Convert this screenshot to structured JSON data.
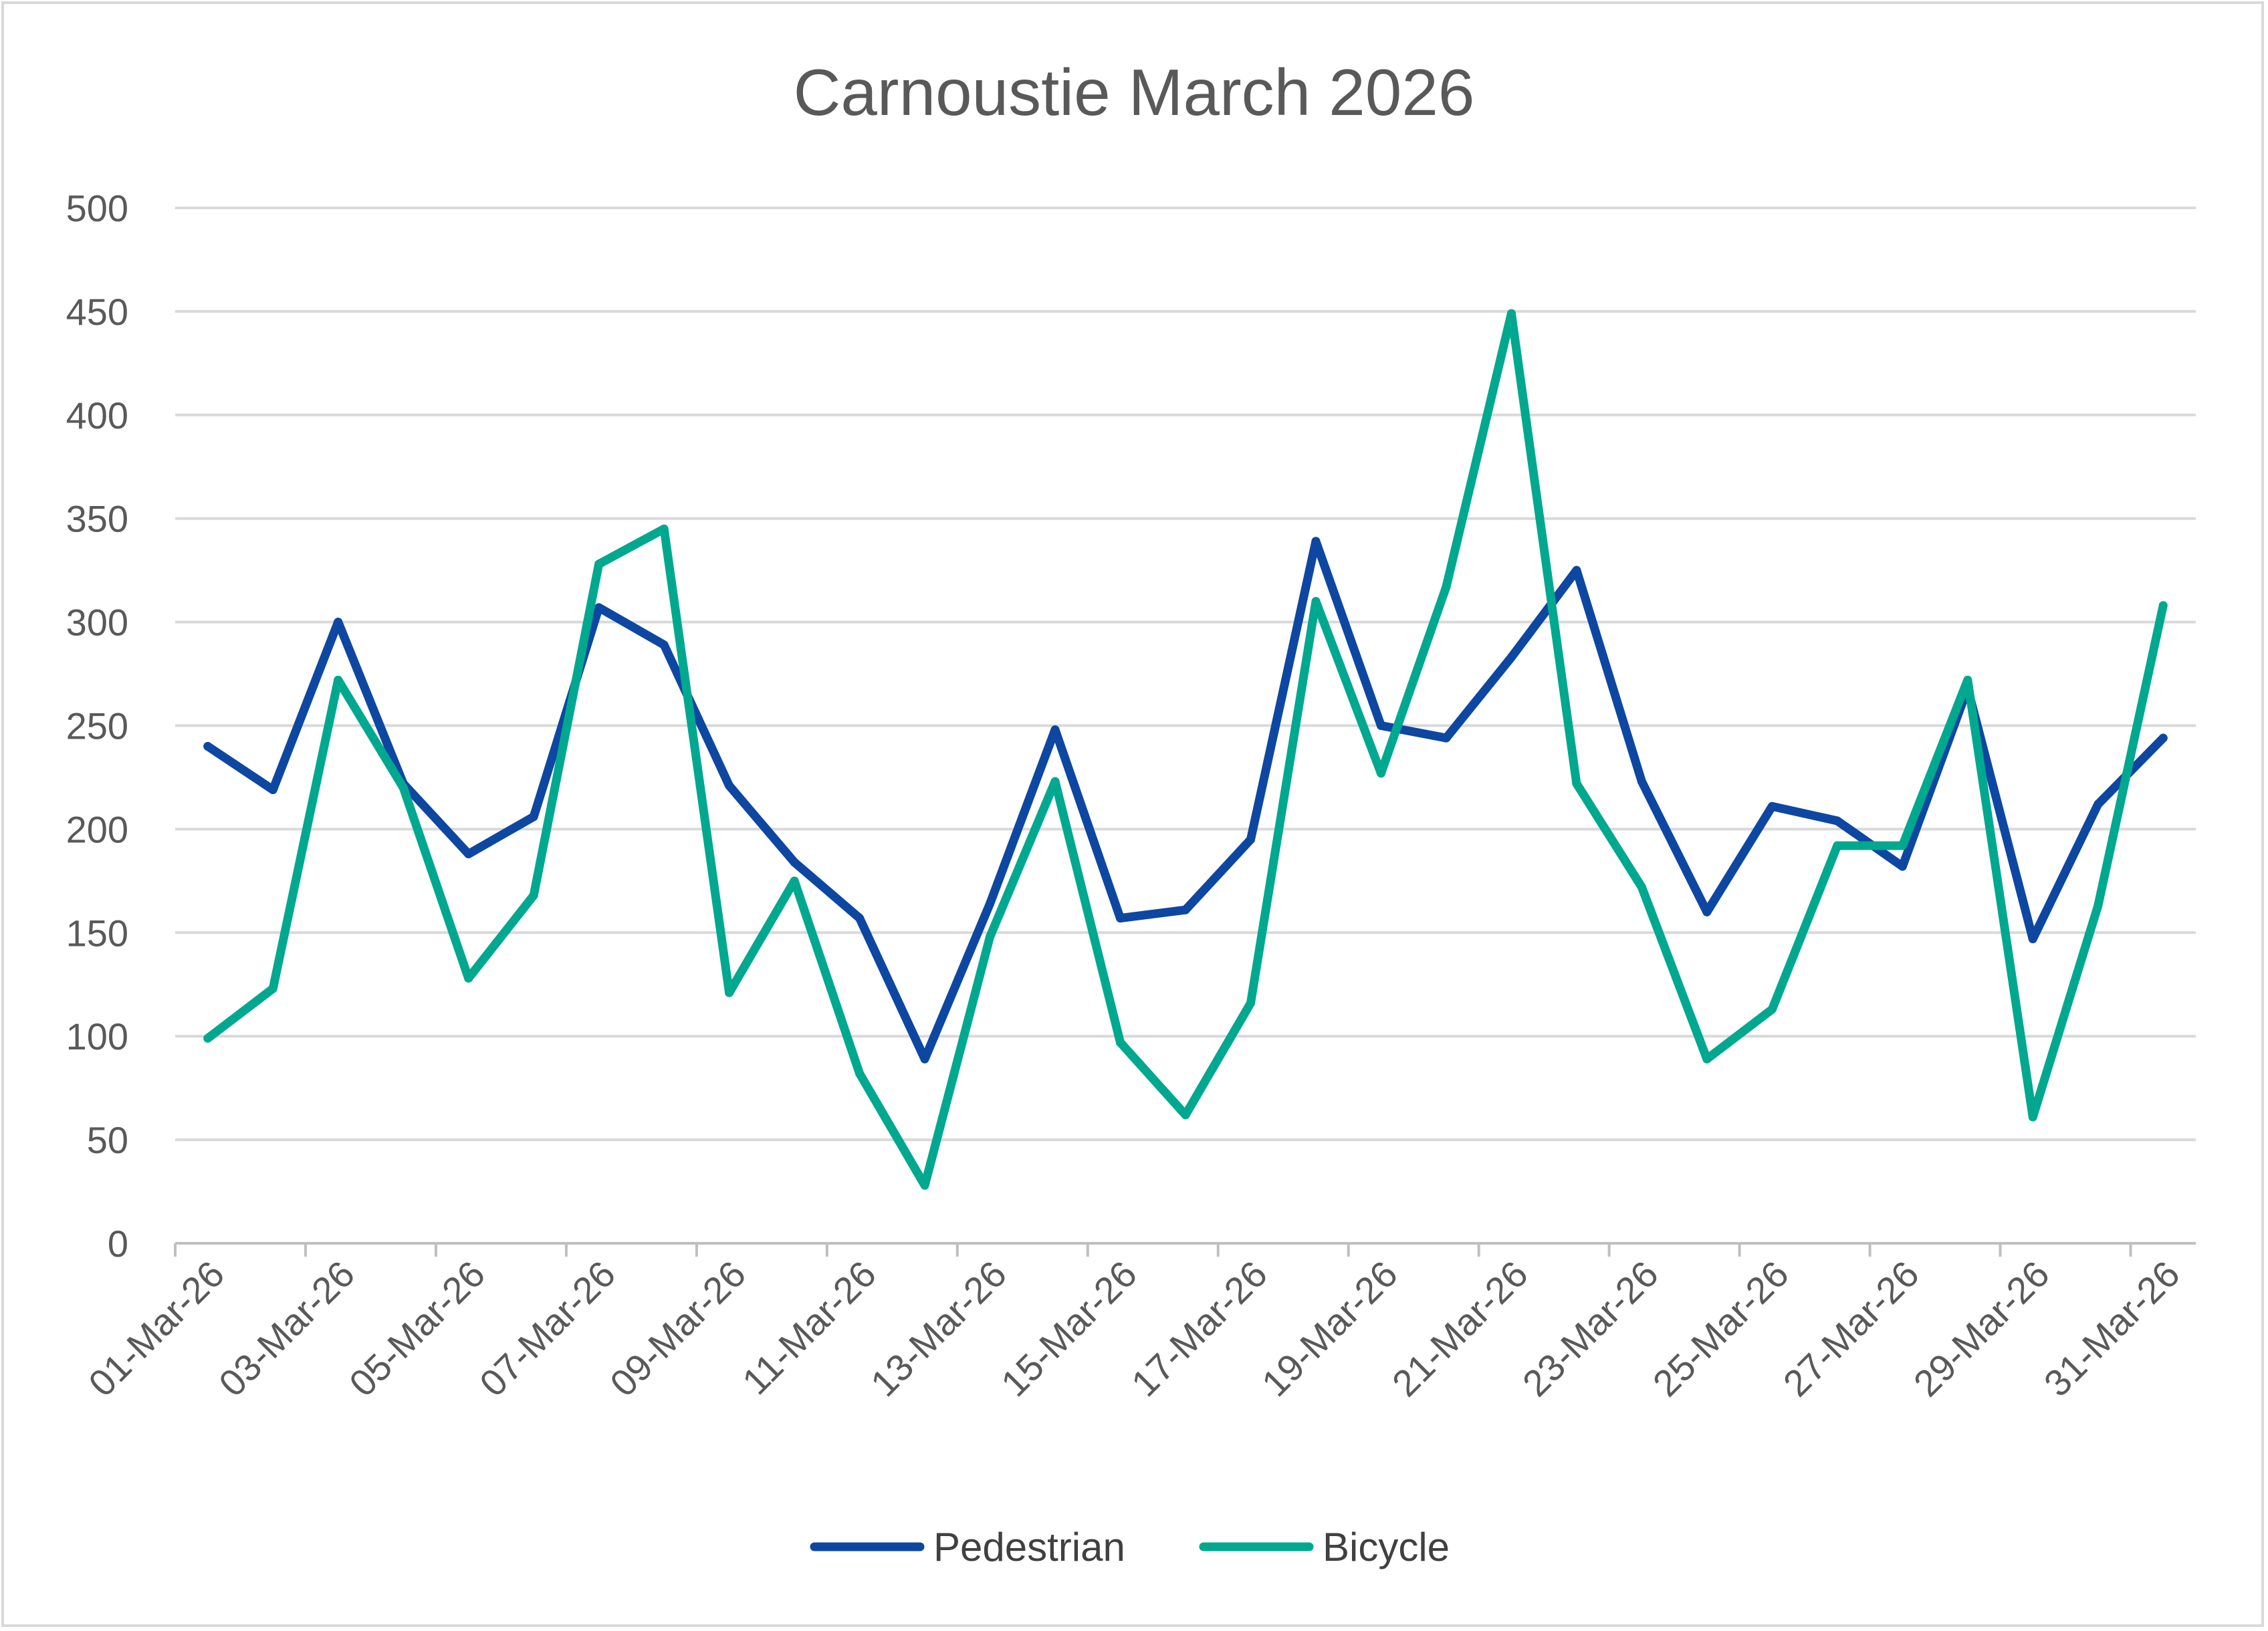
{
  "chart_data": {
    "type": "line",
    "title": "Carnoustie March 2026",
    "xlabel": "",
    "ylabel": "",
    "ylim": [
      0,
      500
    ],
    "yticks": [
      "0",
      "50",
      "100",
      "150",
      "200",
      "250",
      "300",
      "350",
      "400",
      "450",
      "500"
    ],
    "grid": true,
    "legend_position": "bottom",
    "x": [
      "01-Mar-26",
      "02-Mar-26",
      "03-Mar-26",
      "04-Mar-26",
      "05-Mar-26",
      "06-Mar-26",
      "07-Mar-26",
      "08-Mar-26",
      "09-Mar-26",
      "10-Mar-26",
      "11-Mar-26",
      "12-Mar-26",
      "13-Mar-26",
      "14-Mar-26",
      "15-Mar-26",
      "16-Mar-26",
      "17-Mar-26",
      "18-Mar-26",
      "19-Mar-26",
      "20-Mar-26",
      "21-Mar-26",
      "22-Mar-26",
      "23-Mar-26",
      "24-Mar-26",
      "25-Mar-26",
      "26-Mar-26",
      "27-Mar-26",
      "28-Mar-26",
      "29-Mar-26",
      "30-Mar-26",
      "31-Mar-26"
    ],
    "xtick_labels": [
      "01-Mar-26",
      "03-Mar-26",
      "05-Mar-26",
      "07-Mar-26",
      "09-Mar-26",
      "11-Mar-26",
      "13-Mar-26",
      "15-Mar-26",
      "17-Mar-26",
      "19-Mar-26",
      "21-Mar-26",
      "23-Mar-26",
      "25-Mar-26",
      "27-Mar-26",
      "29-Mar-26",
      "31-Mar-26"
    ],
    "series": [
      {
        "name": "Pedestrian",
        "color": "#0d47a1",
        "values": [
          240,
          219,
          300,
          222,
          188,
          206,
          307,
          289,
          221,
          184,
          157,
          89,
          164,
          248,
          157,
          161,
          195,
          339,
          250,
          244,
          283,
          325,
          223,
          160,
          211,
          204,
          182,
          268,
          147,
          212,
          244
        ]
      },
      {
        "name": "Bicycle",
        "color": "#00a88f",
        "values": [
          99,
          123,
          272,
          220,
          128,
          168,
          328,
          345,
          121,
          175,
          82,
          28,
          148,
          223,
          97,
          62,
          116,
          310,
          227,
          317,
          449,
          222,
          172,
          89,
          113,
          192,
          192,
          272,
          61,
          163,
          308
        ]
      }
    ]
  }
}
